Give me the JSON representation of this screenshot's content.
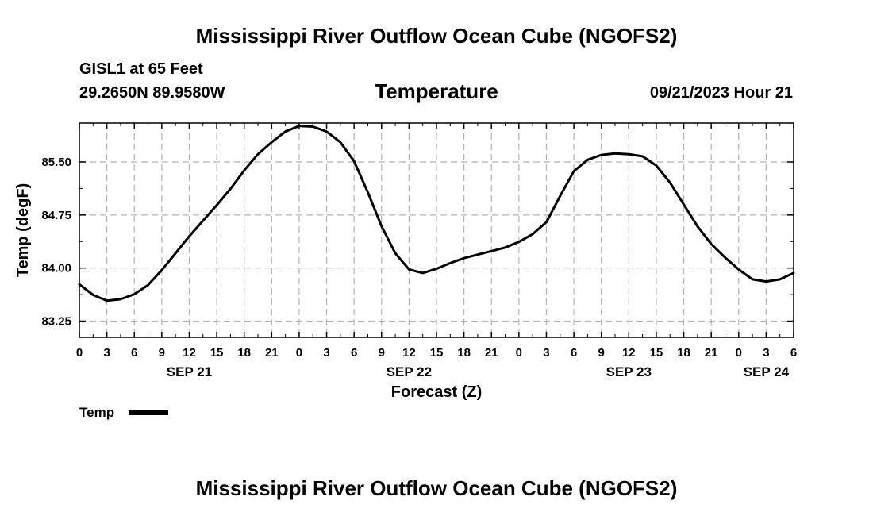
{
  "header": {
    "title": "Mississippi River Outflow Ocean Cube (NGOFS2)",
    "station": "GISL1 at 65 Feet",
    "coords": "29.2650N  89.9580W",
    "subtitle": "Temperature",
    "datetime": "09/21/2023 Hour 21"
  },
  "footer": {
    "title": "Mississippi River Outflow Ocean Cube (NGOFS2)"
  },
  "chart_data": {
    "type": "line",
    "title": "Temperature",
    "xlabel": "Forecast (Z)",
    "ylabel": "Temp (degF)",
    "xlim": [
      0,
      78
    ],
    "ylim": [
      83.02,
      86.05
    ],
    "yticks": [
      83.25,
      84.0,
      84.75,
      85.5
    ],
    "ytick_labels": [
      "83.25",
      "84.00",
      "84.75",
      "85.50"
    ],
    "xticks": [
      0,
      3,
      6,
      9,
      12,
      15,
      18,
      21,
      24,
      27,
      30,
      33,
      36,
      39,
      42,
      45,
      48,
      51,
      54,
      57,
      60,
      63,
      66,
      69,
      72,
      75,
      78
    ],
    "xtick_labels": [
      "0",
      "3",
      "6",
      "9",
      "12",
      "15",
      "18",
      "21",
      "0",
      "3",
      "6",
      "9",
      "12",
      "15",
      "18",
      "21",
      "0",
      "3",
      "6",
      "9",
      "12",
      "15",
      "18",
      "21",
      "0",
      "3",
      "6"
    ],
    "date_labels": [
      {
        "x": 12,
        "label": "SEP 21"
      },
      {
        "x": 36,
        "label": "SEP 22"
      },
      {
        "x": 60,
        "label": "SEP 23"
      },
      {
        "x": 75,
        "label": "SEP 24"
      }
    ],
    "grid": true,
    "legend": {
      "position": "bottom-left",
      "entries": [
        "Temp"
      ]
    },
    "series": [
      {
        "name": "Temp",
        "x": [
          0,
          1.5,
          3,
          4.5,
          6,
          7.5,
          9,
          10.5,
          12,
          13.5,
          15,
          16.5,
          18,
          19.5,
          21,
          22.5,
          24,
          25.5,
          27,
          28.5,
          30,
          31.5,
          33,
          34.5,
          36,
          37.5,
          39,
          40.5,
          42,
          43.5,
          45,
          46.5,
          48,
          49.5,
          51,
          52.5,
          54,
          55.5,
          57,
          58.5,
          60,
          61.5,
          63,
          64.5,
          66,
          67.5,
          69,
          70.5,
          72,
          73.5,
          75,
          76.5,
          78
        ],
        "values": [
          83.77,
          83.62,
          83.54,
          83.56,
          83.63,
          83.76,
          83.97,
          84.21,
          84.45,
          84.67,
          84.89,
          85.12,
          85.38,
          85.61,
          85.78,
          85.93,
          86.01,
          86.0,
          85.93,
          85.78,
          85.51,
          85.07,
          84.59,
          84.21,
          83.98,
          83.93,
          83.99,
          84.07,
          84.14,
          84.19,
          84.24,
          84.29,
          84.37,
          84.48,
          84.65,
          85.02,
          85.37,
          85.53,
          85.6,
          85.62,
          85.61,
          85.58,
          85.45,
          85.21,
          84.9,
          84.59,
          84.34,
          84.15,
          83.98,
          83.84,
          83.81,
          83.84,
          83.93
        ]
      }
    ]
  }
}
